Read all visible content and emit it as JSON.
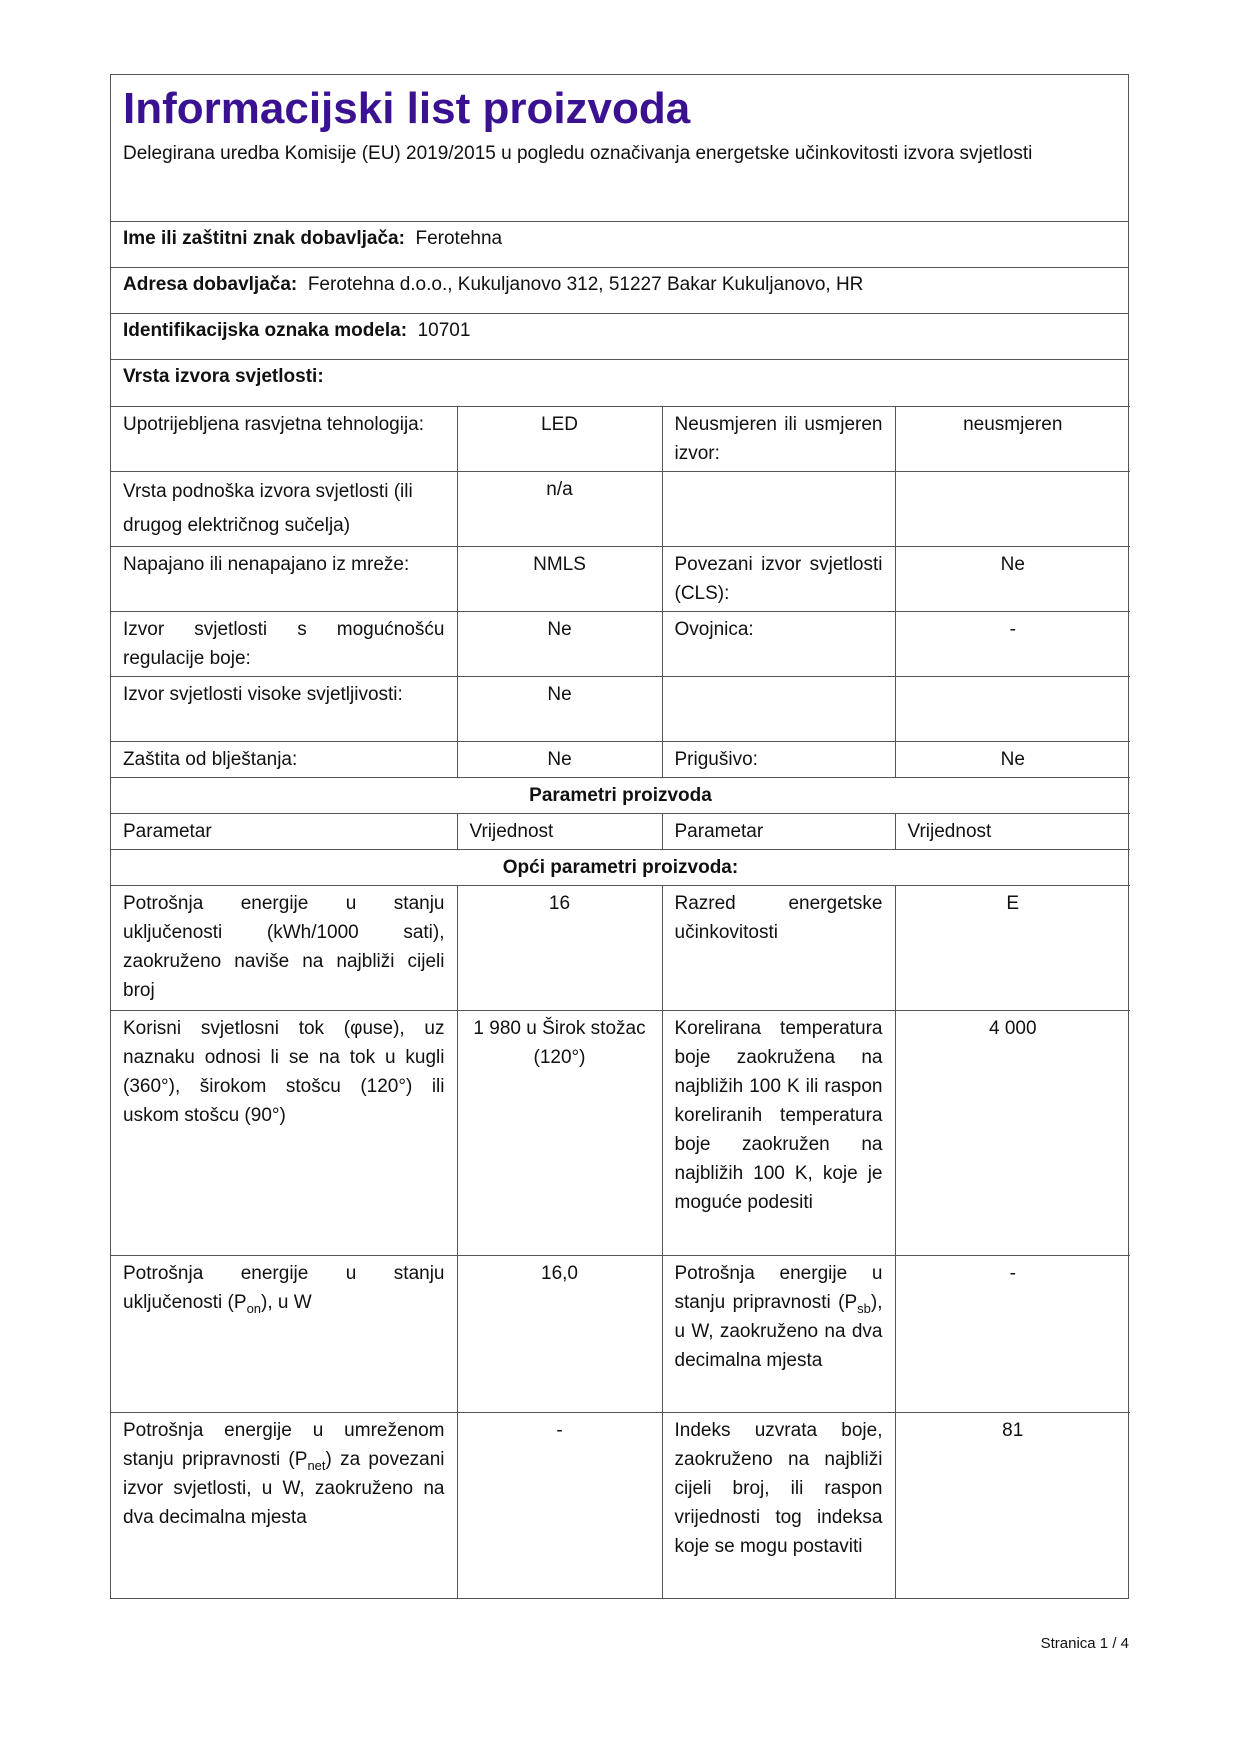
{
  "title": "Informacijski list proizvoda",
  "subtitle": "Delegirana uredba Komisije (EU) 2019/2015 u pogledu označivanja energetske učinkovitosti izvora svjetlosti",
  "supplier": {
    "label": "Ime ili zaštitni znak dobavljača:",
    "value": "Ferotehna"
  },
  "address": {
    "label": "Adresa dobavljača:",
    "value": "Ferotehna d.o.o., Kukuljanovo 312, 51227 Bakar Kukuljanovo, HR"
  },
  "model": {
    "label": "Identifikacijska oznaka modela:",
    "value": "10701"
  },
  "source_type_heading": "Vrsta izvora svjetlosti:",
  "rows": [
    {
      "p1": "Upotrijebljena rasvjetna tehnologija:",
      "v1": "LED",
      "p2": "Neusmjeren ili usmjeren izvor:",
      "v2": "neusmjeren"
    },
    {
      "p1": "Vrsta podnoška izvora svjetlosti (ili drugog električnog sučelja)",
      "v1": "n/a",
      "p2": "",
      "v2": ""
    },
    {
      "p1": "Napajano ili nenapajano iz mreže:",
      "v1": "NMLS",
      "p2": "Povezani izvor svjetlosti (CLS):",
      "v2": "Ne"
    },
    {
      "p1": "Izvor svjetlosti s mogućnošću regulacije boje:",
      "v1": "Ne",
      "p2": "Ovojnica:",
      "v2": "-"
    },
    {
      "p1": "Izvor svjetlosti visoke svjetljivosti:",
      "v1": "Ne",
      "p2": "",
      "v2": ""
    },
    {
      "p1": "Zaštita od blještanja:",
      "v1": "Ne",
      "p2": "Prigušivo:",
      "v2": "Ne"
    }
  ],
  "params_heading": "Parametri proizvoda",
  "columns": [
    "Parametar",
    "Vrijednost",
    "Parametar",
    "Vrijednost"
  ],
  "general_heading": "Opći parametri proizvoda:",
  "general": [
    {
      "p1": "Potrošnja energije u stanju uključenosti (kWh/1000 sati), zaokruženo naviše na najbliži cijeli broj",
      "v1": "16",
      "p2": "Razred energetske učinkovitosti",
      "v2": "E"
    },
    {
      "p1": "Korisni svjetlosni tok (φuse), uz naznaku odnosi li se na tok u kugli (360°), širokom stošcu (120°) ili uskom stošcu (90°)",
      "v1": "1 980 u Širok stožac (120°)",
      "p2": "Korelirana temperatura boje zaokružena na najbližih 100 K ili raspon koreliranih temperatura boje zaokružen na najbližih 100 K, koje je moguće podesiti",
      "v2": "4 000"
    }
  ],
  "pon": {
    "pre": "Potrošnja energije u stanju uključenosti (P",
    "sub": "on",
    "post": "), u W",
    "v1": "16,0",
    "p2_pre": "Potrošnja energije u stanju pripravnosti (P",
    "p2_sub": "sb",
    "p2_post": "), u W, zaokruženo na dva decimalna mjesta",
    "v2": "-"
  },
  "pnet": {
    "pre": "Potrošnja energije u umreženom stanju pripravnosti (P",
    "sub": "net",
    "post": ") za povezani izvor svjetlosti, u W, zaokruženo na dva decimalna mjesta",
    "v1": "-",
    "p2": "Indeks uzvrata boje, zaokruženo na najbliži cijeli broj, ili raspon vrijednosti tog indeksa koje se mogu postaviti",
    "v2": "81"
  },
  "footer": "Stranica 1 / 4",
  "colors": {
    "title": "#3a1191",
    "border": "#555555"
  }
}
